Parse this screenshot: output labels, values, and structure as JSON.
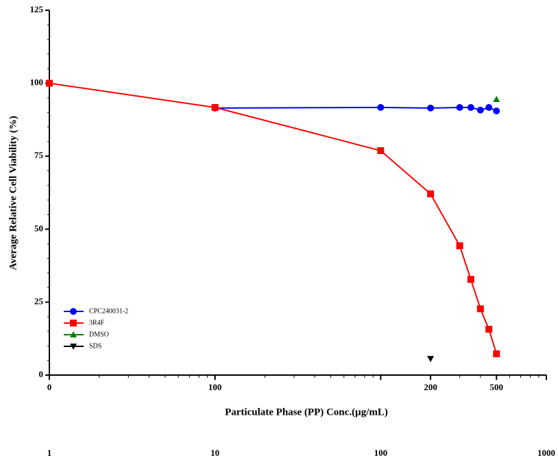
{
  "chart_data": {
    "type": "line",
    "xlabel": "Particulate Phase (PP) Conc.(µg/mL)",
    "ylabel": "Average Relative Cell Viability (%)",
    "xscale": "log",
    "xlim": [
      1,
      1000
    ],
    "ylim": [
      0,
      125
    ],
    "xticks": [
      {
        "value": 1,
        "label": "0"
      },
      {
        "value": 10,
        "label": "100"
      },
      200,
      500
    ],
    "secondary_xticks": [
      1,
      10,
      100,
      1000
    ],
    "yticks": [
      0,
      25,
      50,
      75,
      100,
      125
    ],
    "minor_ticks": true,
    "legend": "lower left",
    "series": [
      {
        "name": "CPC240031-2",
        "color": "#0000ff",
        "marker": "circle",
        "x": [
          10,
          100,
          200,
          300,
          350,
          400,
          450,
          500
        ],
        "values": [
          91.5,
          91.7,
          91.5,
          91.7,
          91.7,
          90.8,
          91.7,
          90.5
        ]
      },
      {
        "name": "3R4F",
        "color": "#ff0000",
        "marker": "square",
        "x": [
          1,
          10,
          100,
          200,
          300,
          350,
          400,
          450,
          500
        ],
        "values": [
          100,
          91.7,
          76.9,
          62.1,
          44.3,
          32.8,
          22.7,
          15.7,
          7.3
        ]
      },
      {
        "name": "DMSO",
        "color": "#008000",
        "marker": "triangle",
        "x": [
          500
        ],
        "values": [
          94.5
        ]
      },
      {
        "name": "SDS",
        "color": "#000000",
        "marker": "triangle-down",
        "x": [
          200
        ],
        "values": [
          5.6
        ]
      }
    ]
  }
}
